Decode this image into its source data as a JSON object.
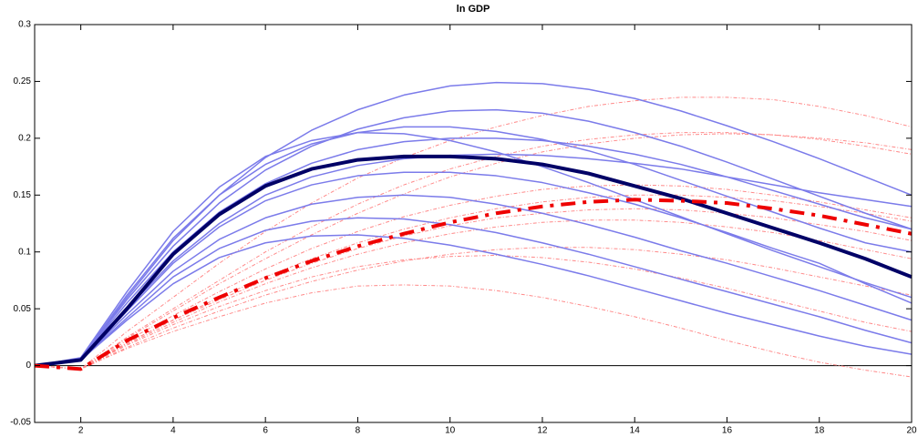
{
  "chart_data": {
    "type": "line",
    "title": "ln GDP",
    "x": [
      1,
      2,
      3,
      4,
      5,
      6,
      7,
      8,
      9,
      10,
      11,
      12,
      13,
      14,
      15,
      16,
      17,
      18,
      19,
      20
    ],
    "xlim": [
      1,
      20
    ],
    "xticks": [
      2,
      4,
      6,
      8,
      10,
      12,
      14,
      16,
      18,
      20
    ],
    "ylim": [
      -0.05,
      0.3
    ],
    "yticks": [
      -0.05,
      0,
      0.05,
      0.1,
      0.15,
      0.2,
      0.25,
      0.3
    ],
    "zero_line": true,
    "series": [
      {
        "color": "#ff8a8a",
        "linestyle": "dashdot",
        "linewidth": 1,
        "values": [
          0,
          -0.003,
          0.03,
          0.06,
          0.09,
          0.118,
          0.143,
          0.165,
          0.183,
          0.198,
          0.21,
          0.22,
          0.228,
          0.233,
          0.236,
          0.236,
          0.234,
          0.228,
          0.22,
          0.21
        ]
      },
      {
        "color": "#ff8a8a",
        "linestyle": "dashdot",
        "linewidth": 1,
        "values": [
          0,
          -0.003,
          0.025,
          0.05,
          0.075,
          0.1,
          0.122,
          0.142,
          0.159,
          0.173,
          0.184,
          0.193,
          0.199,
          0.203,
          0.205,
          0.205,
          0.203,
          0.199,
          0.193,
          0.186
        ]
      },
      {
        "color": "#ff8a8a",
        "linestyle": "dashdot",
        "linewidth": 1,
        "values": [
          0,
          -0.003,
          0.02,
          0.04,
          0.058,
          0.075,
          0.09,
          0.103,
          0.114,
          0.123,
          0.13,
          0.134,
          0.137,
          0.138,
          0.137,
          0.134,
          0.13,
          0.124,
          0.118,
          0.11
        ]
      },
      {
        "color": "#ff8a8a",
        "linestyle": "dashdot",
        "linewidth": 1,
        "values": [
          0,
          -0.003,
          0.015,
          0.03,
          0.043,
          0.055,
          0.064,
          0.07,
          0.071,
          0.07,
          0.066,
          0.06,
          0.052,
          0.043,
          0.033,
          0.022,
          0.012,
          0.003,
          -0.004,
          -0.01
        ]
      },
      {
        "color": "#ff8a8a",
        "linestyle": "dashdot",
        "linewidth": 1,
        "values": [
          0,
          -0.003,
          0.018,
          0.036,
          0.052,
          0.066,
          0.078,
          0.087,
          0.093,
          0.096,
          0.097,
          0.095,
          0.091,
          0.085,
          0.077,
          0.068,
          0.058,
          0.048,
          0.038,
          0.03
        ]
      },
      {
        "color": "#ff8a8a",
        "linestyle": "dashdot",
        "linewidth": 1,
        "values": [
          0,
          -0.003,
          0.022,
          0.044,
          0.065,
          0.085,
          0.103,
          0.118,
          0.131,
          0.141,
          0.149,
          0.155,
          0.158,
          0.159,
          0.158,
          0.155,
          0.15,
          0.144,
          0.137,
          0.13
        ]
      },
      {
        "color": "#ff8a8a",
        "linestyle": "dashdot",
        "linewidth": 1,
        "values": [
          0,
          -0.003,
          0.02,
          0.04,
          0.06,
          0.078,
          0.094,
          0.108,
          0.12,
          0.13,
          0.138,
          0.144,
          0.148,
          0.15,
          0.15,
          0.148,
          0.145,
          0.14,
          0.134,
          0.127
        ]
      },
      {
        "color": "#ff8a8a",
        "linestyle": "dashdot",
        "linewidth": 1,
        "values": [
          0,
          -0.003,
          0.016,
          0.033,
          0.048,
          0.062,
          0.074,
          0.084,
          0.092,
          0.098,
          0.102,
          0.104,
          0.104,
          0.102,
          0.098,
          0.093,
          0.086,
          0.078,
          0.07,
          0.062
        ]
      },
      {
        "color": "#ff8a8a",
        "linestyle": "dashdot",
        "linewidth": 1,
        "values": [
          0,
          -0.003,
          0.024,
          0.048,
          0.072,
          0.094,
          0.115,
          0.134,
          0.151,
          0.166,
          0.178,
          0.188,
          0.195,
          0.2,
          0.203,
          0.204,
          0.203,
          0.2,
          0.196,
          0.19
        ]
      },
      {
        "color": "#ff8a8a",
        "linestyle": "dashdot",
        "linewidth": 1,
        "values": [
          0,
          -0.003,
          0.019,
          0.038,
          0.056,
          0.072,
          0.086,
          0.098,
          0.108,
          0.116,
          0.122,
          0.126,
          0.128,
          0.128,
          0.126,
          0.122,
          0.117,
          0.11,
          0.102,
          0.094
        ]
      },
      {
        "color": "#7b7bea",
        "linestyle": "solid",
        "linewidth": 1.5,
        "values": [
          0,
          0.006,
          0.06,
          0.11,
          0.15,
          0.183,
          0.207,
          0.225,
          0.238,
          0.246,
          0.249,
          0.248,
          0.243,
          0.235,
          0.224,
          0.211,
          0.197,
          0.182,
          0.166,
          0.15
        ]
      },
      {
        "color": "#7b7bea",
        "linestyle": "solid",
        "linewidth": 1.5,
        "values": [
          0,
          0.006,
          0.058,
          0.105,
          0.143,
          0.172,
          0.193,
          0.208,
          0.218,
          0.224,
          0.225,
          0.222,
          0.215,
          0.205,
          0.193,
          0.179,
          0.164,
          0.149,
          0.134,
          0.12
        ]
      },
      {
        "color": "#7b7bea",
        "linestyle": "solid",
        "linewidth": 1.5,
        "values": [
          0,
          0.006,
          0.062,
          0.112,
          0.15,
          0.177,
          0.195,
          0.205,
          0.21,
          0.21,
          0.206,
          0.199,
          0.189,
          0.177,
          0.163,
          0.149,
          0.135,
          0.121,
          0.108,
          0.1
        ]
      },
      {
        "color": "#7b7bea",
        "linestyle": "solid",
        "linewidth": 1.5,
        "values": [
          0,
          0.007,
          0.065,
          0.118,
          0.157,
          0.184,
          0.198,
          0.205,
          0.204,
          0.198,
          0.188,
          0.175,
          0.161,
          0.146,
          0.131,
          0.116,
          0.101,
          0.087,
          0.073,
          0.06
        ]
      },
      {
        "color": "#7b7bea",
        "linestyle": "solid",
        "linewidth": 1.5,
        "values": [
          0,
          0.005,
          0.045,
          0.083,
          0.111,
          0.13,
          0.142,
          0.148,
          0.15,
          0.148,
          0.142,
          0.134,
          0.124,
          0.113,
          0.101,
          0.09,
          0.078,
          0.066,
          0.053,
          0.04
        ]
      },
      {
        "color": "#7b7bea",
        "linestyle": "solid",
        "linewidth": 1.5,
        "values": [
          0,
          0.005,
          0.042,
          0.078,
          0.103,
          0.119,
          0.127,
          0.13,
          0.129,
          0.124,
          0.117,
          0.108,
          0.098,
          0.087,
          0.076,
          0.065,
          0.054,
          0.043,
          0.031,
          0.02
        ]
      },
      {
        "color": "#7b7bea",
        "linestyle": "solid",
        "linewidth": 1.5,
        "values": [
          0,
          0.005,
          0.04,
          0.072,
          0.095,
          0.108,
          0.114,
          0.115,
          0.112,
          0.106,
          0.098,
          0.089,
          0.079,
          0.068,
          0.057,
          0.046,
          0.036,
          0.026,
          0.017,
          0.01
        ]
      },
      {
        "color": "#7b7bea",
        "linestyle": "solid",
        "linewidth": 1.5,
        "values": [
          0,
          0.006,
          0.055,
          0.1,
          0.135,
          0.16,
          0.178,
          0.19,
          0.197,
          0.2,
          0.2,
          0.198,
          0.193,
          0.186,
          0.177,
          0.166,
          0.154,
          0.142,
          0.13,
          0.12
        ]
      },
      {
        "color": "#7b7bea",
        "linestyle": "solid",
        "linewidth": 1.5,
        "values": [
          0,
          0.005,
          0.048,
          0.09,
          0.122,
          0.145,
          0.159,
          0.167,
          0.17,
          0.17,
          0.167,
          0.161,
          0.152,
          0.142,
          0.13,
          0.117,
          0.103,
          0.09,
          0.072,
          0.055
        ]
      },
      {
        "color": "#7b7bea",
        "linestyle": "solid",
        "linewidth": 1.5,
        "values": [
          0,
          0.006,
          0.05,
          0.092,
          0.125,
          0.15,
          0.166,
          0.176,
          0.182,
          0.185,
          0.186,
          0.185,
          0.182,
          0.178,
          0.173,
          0.166,
          0.159,
          0.152,
          0.146,
          0.14
        ]
      },
      {
        "color": "#000066",
        "linestyle": "solid",
        "linewidth": 4,
        "values": [
          0,
          0.005,
          0.05,
          0.098,
          0.133,
          0.158,
          0.173,
          0.181,
          0.184,
          0.184,
          0.182,
          0.177,
          0.169,
          0.158,
          0.147,
          0.134,
          0.121,
          0.108,
          0.094,
          0.078
        ]
      },
      {
        "color": "#ee0000",
        "linestyle": "dashdot",
        "linewidth": 4,
        "values": [
          0,
          -0.003,
          0.022,
          0.042,
          0.06,
          0.077,
          0.092,
          0.105,
          0.116,
          0.126,
          0.134,
          0.14,
          0.144,
          0.146,
          0.145,
          0.143,
          0.138,
          0.132,
          0.124,
          0.116
        ]
      }
    ]
  }
}
